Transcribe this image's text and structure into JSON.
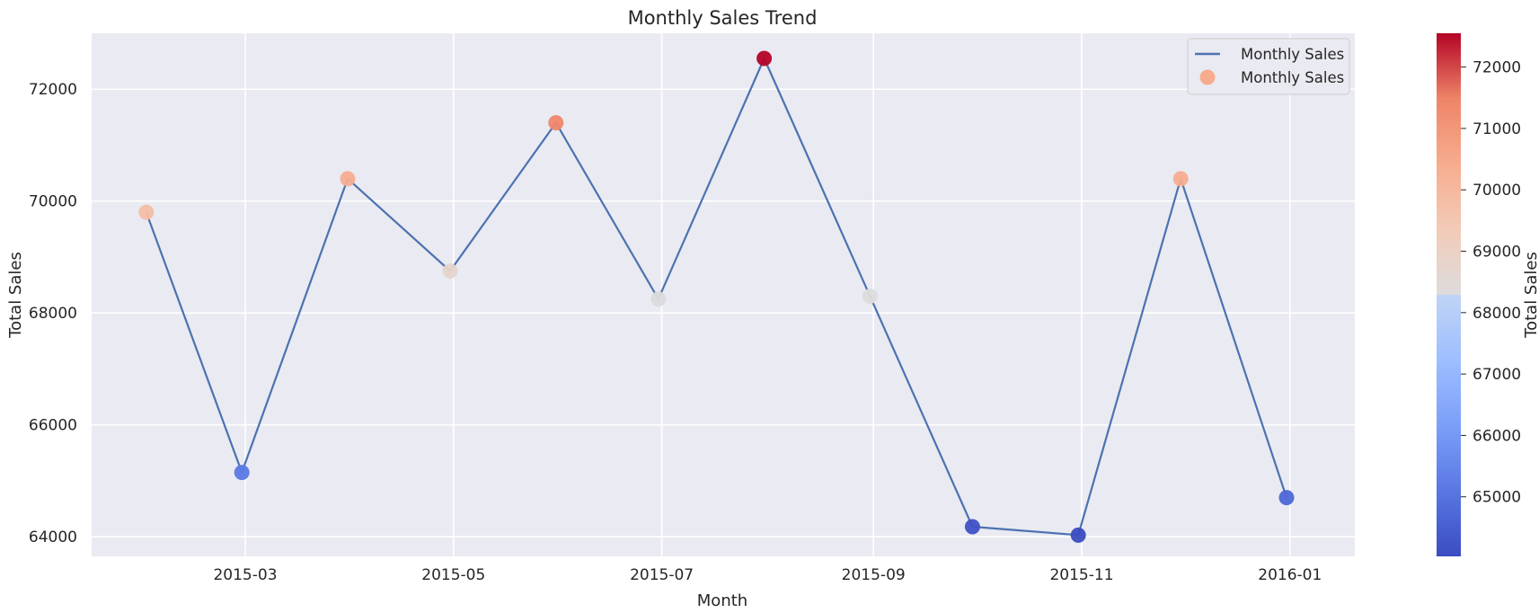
{
  "chart_data": {
    "type": "line",
    "title": "Monthly Sales Trend",
    "xlabel": "Month",
    "ylabel": "Total Sales",
    "x_tick_labels": [
      "2015-03",
      "2015-05",
      "2015-07",
      "2015-09",
      "2015-11",
      "2016-01"
    ],
    "y_tick_labels": [
      "64000",
      "66000",
      "68000",
      "70000",
      "72000"
    ],
    "y_ticks": [
      64000,
      66000,
      68000,
      70000,
      72000
    ],
    "ylim": [
      63650,
      73000
    ],
    "xlim": [
      "2015-01-15",
      "2016-01-20"
    ],
    "grid": true,
    "legend_position": "top-right",
    "series": [
      {
        "name": "Monthly Sales",
        "kind": "line",
        "color": "#4c72b0",
        "x": [
          "2015-01-31",
          "2015-02-28",
          "2015-03-31",
          "2015-04-30",
          "2015-05-31",
          "2015-06-30",
          "2015-07-31",
          "2015-08-31",
          "2015-09-30",
          "2015-10-31",
          "2015-11-30",
          "2015-12-31"
        ],
        "values": [
          69800,
          65150,
          70400,
          68750,
          71400,
          68250,
          72550,
          68300,
          64180,
          64030,
          70400,
          64700
        ]
      },
      {
        "name": "Monthly Sales",
        "kind": "scatter",
        "colormap": "coolwarm",
        "x": [
          "2015-01-31",
          "2015-02-28",
          "2015-03-31",
          "2015-04-30",
          "2015-05-31",
          "2015-06-30",
          "2015-07-31",
          "2015-08-31",
          "2015-09-30",
          "2015-10-31",
          "2015-11-30",
          "2015-12-31"
        ],
        "values": [
          69800,
          65150,
          70400,
          68750,
          71400,
          68250,
          72550,
          68300,
          64180,
          64030,
          70400,
          64700
        ]
      }
    ],
    "colorbar": {
      "label": "Total Sales",
      "range": [
        64030,
        72550
      ],
      "tick_labels": [
        "65000",
        "66000",
        "67000",
        "68000",
        "69000",
        "70000",
        "71000",
        "72000"
      ],
      "ticks": [
        65000,
        66000,
        67000,
        68000,
        69000,
        70000,
        71000,
        72000
      ]
    }
  }
}
